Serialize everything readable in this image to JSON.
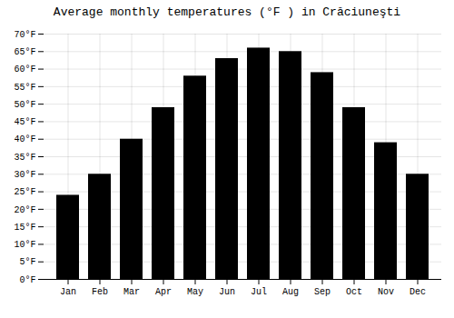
{
  "chart_data": {
    "type": "bar",
    "title": "Average monthly temperatures (°F ) in Crăciuneşti",
    "categories": [
      "Jan",
      "Feb",
      "Mar",
      "Apr",
      "May",
      "Jun",
      "Jul",
      "Aug",
      "Sep",
      "Oct",
      "Nov",
      "Dec"
    ],
    "values": [
      24,
      30,
      40,
      49,
      58,
      63,
      66,
      65,
      59,
      49,
      39,
      30
    ],
    "ylim": [
      0,
      70
    ],
    "yticks": [
      {
        "value": 0,
        "label": "0°F"
      },
      {
        "value": 5,
        "label": "5°F"
      },
      {
        "value": 10,
        "label": "10°F"
      },
      {
        "value": 15,
        "label": "15°F"
      },
      {
        "value": 20,
        "label": "20°F"
      },
      {
        "value": 25,
        "label": "25°F"
      },
      {
        "value": 30,
        "label": "30°F"
      },
      {
        "value": 35,
        "label": "35°F"
      },
      {
        "value": 40,
        "label": "40°F"
      },
      {
        "value": 45,
        "label": "45°F"
      },
      {
        "value": 50,
        "label": "50°F"
      },
      {
        "value": 55,
        "label": "55°F"
      },
      {
        "value": 60,
        "label": "60°F"
      },
      {
        "value": 65,
        "label": "65°F"
      },
      {
        "value": 70,
        "label": "70°F"
      }
    ],
    "grid": true
  }
}
